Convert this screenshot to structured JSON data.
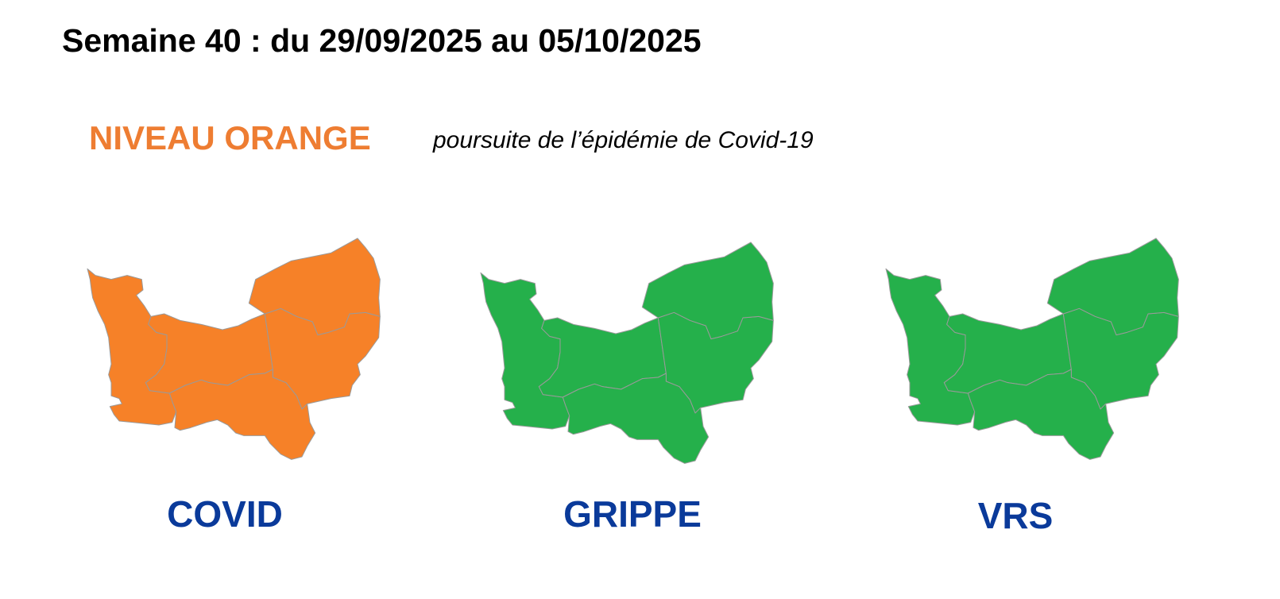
{
  "header": {
    "title": "Semaine 40 : du 29/09/2025 au 05/10/2025",
    "level": "NIVEAU ORANGE",
    "level_color": "#ee7d32",
    "description": "poursuite de l’épidémie de Covid-19"
  },
  "maps": [
    {
      "label": "COVID",
      "fill": "#f68128",
      "status": "orange"
    },
    {
      "label": "GRIPPE",
      "fill": "#25b04b",
      "status": "green"
    },
    {
      "label": "VRS",
      "fill": "#25b04b",
      "status": "green"
    }
  ]
}
